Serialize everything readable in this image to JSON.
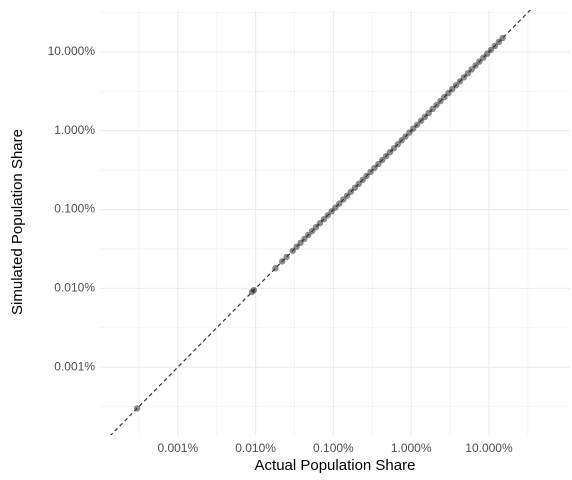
{
  "chart_data": {
    "type": "scatter",
    "x_label": "Actual Population Share",
    "y_label": "Simulated Population Share",
    "x": [
      0.0003,
      0.009,
      0.0095,
      0.018,
      0.022,
      0.025,
      0.03,
      0.0337,
      0.0378,
      0.0424,
      0.0476,
      0.0534,
      0.0599,
      0.0672,
      0.0754,
      0.0846,
      0.0949,
      0.106,
      0.119,
      0.134,
      0.15,
      0.168,
      0.189,
      0.212,
      0.238,
      0.267,
      0.3,
      0.337,
      0.378,
      0.424,
      0.476,
      0.534,
      0.599,
      0.672,
      0.754,
      0.846,
      0.949,
      1.06,
      1.19,
      1.34,
      1.5,
      1.68,
      1.89,
      2.12,
      2.38,
      2.67,
      3.0,
      3.37,
      3.78,
      4.24,
      4.76,
      5.34,
      5.99,
      6.72,
      7.54,
      8.46,
      9.49,
      10.6,
      11.9,
      13.4,
      15.0
    ],
    "y": [
      0.0003,
      0.009,
      0.0095,
      0.018,
      0.022,
      0.025,
      0.03,
      0.0337,
      0.0378,
      0.0424,
      0.0476,
      0.0534,
      0.0599,
      0.0672,
      0.0754,
      0.0846,
      0.0949,
      0.106,
      0.119,
      0.134,
      0.15,
      0.168,
      0.189,
      0.212,
      0.238,
      0.267,
      0.3,
      0.337,
      0.378,
      0.424,
      0.476,
      0.534,
      0.599,
      0.672,
      0.754,
      0.846,
      0.949,
      1.06,
      1.19,
      1.34,
      1.5,
      1.68,
      1.89,
      2.12,
      2.38,
      2.67,
      3.0,
      3.37,
      3.78,
      4.24,
      4.76,
      5.34,
      5.99,
      6.72,
      7.54,
      8.46,
      9.49,
      10.6,
      11.9,
      13.4,
      15.0
    ],
    "color": "#000000",
    "xlim": [
      0.0001,
      110
    ],
    "ylim": [
      0.000138,
      34
    ],
    "xticks": [
      {
        "value": 0.001,
        "label": "0.001%"
      },
      {
        "value": 0.01,
        "label": "0.010%"
      },
      {
        "value": 0.1,
        "label": "0.100%"
      },
      {
        "value": 1,
        "label": "1.000%"
      },
      {
        "value": 10,
        "label": "10.000%"
      }
    ],
    "yticks": [
      {
        "value": 0.001,
        "label": "0.001%"
      },
      {
        "value": 0.01,
        "label": "0.010%"
      },
      {
        "value": 0.1,
        "label": "0.100%"
      },
      {
        "value": 1,
        "label": "1.000%"
      },
      {
        "value": 10,
        "label": "10.000%"
      }
    ],
    "xscale": "log",
    "yscale": "log",
    "grid": true,
    "identity_line": true
  }
}
